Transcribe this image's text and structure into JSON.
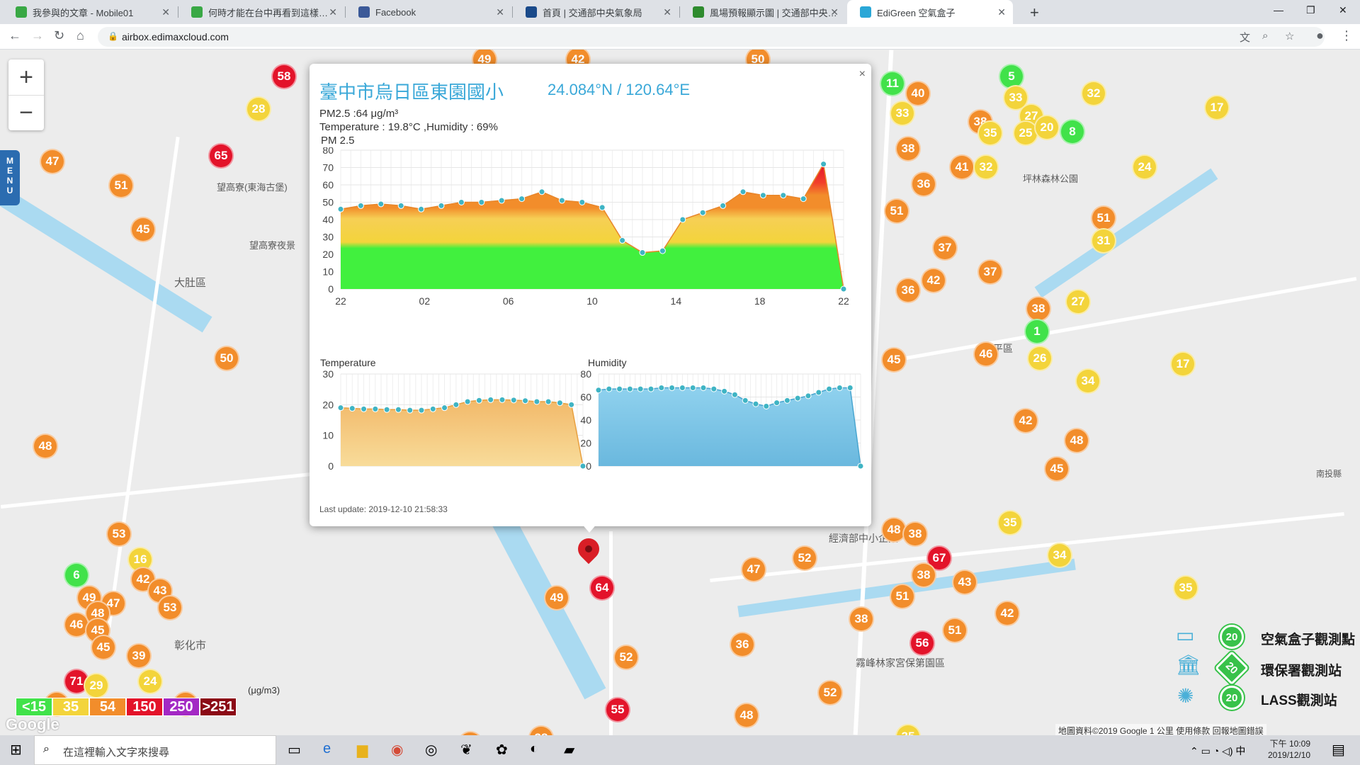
{
  "browser": {
    "tabs": [
      {
        "title": "我參與的文章 - Mobile01",
        "favicon_color": "#39a845",
        "active": false
      },
      {
        "title": "何時才能在台中再看到這樣的藍天",
        "favicon_color": "#39a845",
        "active": false
      },
      {
        "title": "Facebook",
        "favicon_color": "#3b5998",
        "active": false
      },
      {
        "title": "首頁 | 交通部中央氣象局",
        "favicon_color": "#1a4a8a",
        "active": false
      },
      {
        "title": "風場預報顯示圖 | 交通部中央氣象局",
        "favicon_color": "#2e8b2e",
        "active": false
      },
      {
        "title": "EdiGreen 空氣盒子",
        "favicon_color": "#2aa7d7",
        "active": true
      }
    ],
    "url": "airbox.edimaxcloud.com"
  },
  "map": {
    "labels": [
      "大肚區",
      "望高寮(東海古堡)",
      "望高寮夜景",
      "彰化市",
      "坪林森林公園",
      "霧峰林家宮保第園區",
      "經濟部中小企業",
      "太平區",
      "南投縣"
    ],
    "zoom_in": "+",
    "zoom_out": "−",
    "menu": "MENU",
    "pm_legend": [
      {
        "label": "<15",
        "color": "#41e24a"
      },
      {
        "label": "35",
        "color": "#f3d43b"
      },
      {
        "label": "54",
        "color": "#f28d2b"
      },
      {
        "label": "150",
        "color": "#e3132a"
      },
      {
        "label": "250",
        "color": "#a329c4"
      },
      {
        "label": ">251",
        "color": "#8b0a16"
      }
    ],
    "unit": "(μg/m3)",
    "google": "Google",
    "attribution": "地圖資料©2019 Google   1 公里   使用條款   回報地圖錯誤",
    "station_legend": [
      {
        "label": "空氣盒子觀測點",
        "value": "20",
        "icon": "airbox-icon"
      },
      {
        "label": "環保署觀測站",
        "value": "20",
        "icon": "government-building-icon"
      },
      {
        "label": "LASS觀測站",
        "value": "20",
        "icon": "antenna-icon"
      }
    ],
    "markers": [
      {
        "v": "58",
        "x": 383,
        "y": 20,
        "c": "#e3132a"
      },
      {
        "v": "28",
        "x": 347,
        "y": 66,
        "c": "#f3d43b"
      },
      {
        "v": "65",
        "x": 294,
        "y": 132,
        "c": "#e3132a"
      },
      {
        "v": "47",
        "x": 56,
        "y": 140,
        "c": "#f28d2b"
      },
      {
        "v": "51",
        "x": 153,
        "y": 174,
        "c": "#f28d2b"
      },
      {
        "v": "45",
        "x": 184,
        "y": 236,
        "c": "#f28d2b"
      },
      {
        "v": "50",
        "x": 302,
        "y": 418,
        "c": "#f28d2b"
      },
      {
        "v": "48",
        "x": 46,
        "y": 542,
        "c": "#f28d2b"
      },
      {
        "v": "53",
        "x": 150,
        "y": 666,
        "c": "#f28d2b"
      },
      {
        "v": "16",
        "x": 180,
        "y": 702,
        "c": "#f3d43b"
      },
      {
        "v": "6",
        "x": 90,
        "y": 724,
        "c": "#41e24a"
      },
      {
        "v": "42",
        "x": 184,
        "y": 730,
        "c": "#f28d2b"
      },
      {
        "v": "43",
        "x": 208,
        "y": 746,
        "c": "#f28d2b"
      },
      {
        "v": "49",
        "x": 108,
        "y": 756,
        "c": "#f28d2b"
      },
      {
        "v": "47",
        "x": 142,
        "y": 764,
        "c": "#f28d2b"
      },
      {
        "v": "53",
        "x": 222,
        "y": 770,
        "c": "#f28d2b"
      },
      {
        "v": "48",
        "x": 120,
        "y": 778,
        "c": "#f28d2b"
      },
      {
        "v": "46",
        "x": 90,
        "y": 794,
        "c": "#f28d2b"
      },
      {
        "v": "45",
        "x": 120,
        "y": 802,
        "c": "#f28d2b"
      },
      {
        "v": "45",
        "x": 128,
        "y": 826,
        "c": "#f28d2b"
      },
      {
        "v": "39",
        "x": 178,
        "y": 838,
        "c": "#f28d2b"
      },
      {
        "v": "71",
        "x": 90,
        "y": 874,
        "c": "#e3132a"
      },
      {
        "v": "29",
        "x": 118,
        "y": 880,
        "c": "#f3d43b"
      },
      {
        "v": "24",
        "x": 194,
        "y": 874,
        "c": "#f3d43b"
      },
      {
        "v": "51",
        "x": 244,
        "y": 906,
        "c": "#f28d2b"
      },
      {
        "v": "46",
        "x": 62,
        "y": 906,
        "c": "#f28d2b"
      },
      {
        "v": "49",
        "x": 666,
        "y": -4,
        "c": "#f28d2b"
      },
      {
        "v": "42",
        "x": 798,
        "y": -4,
        "c": "#f28d2b"
      },
      {
        "v": "50",
        "x": 1052,
        "y": -4,
        "c": "#f28d2b"
      },
      {
        "v": "11",
        "x": 1242,
        "y": 30,
        "c": "#41e24a"
      },
      {
        "v": "40",
        "x": 1278,
        "y": 44,
        "c": "#f28d2b"
      },
      {
        "v": "33",
        "x": 1256,
        "y": 72,
        "c": "#f3d43b"
      },
      {
        "v": "38",
        "x": 1264,
        "y": 122,
        "c": "#f28d2b"
      },
      {
        "v": "36",
        "x": 1286,
        "y": 172,
        "c": "#f28d2b"
      },
      {
        "v": "51",
        "x": 1248,
        "y": 210,
        "c": "#f28d2b"
      },
      {
        "v": "41",
        "x": 1340,
        "y": 148,
        "c": "#f28d2b"
      },
      {
        "v": "32",
        "x": 1374,
        "y": 148,
        "c": "#f3d43b"
      },
      {
        "v": "5",
        "x": 1410,
        "y": 20,
        "c": "#41e24a"
      },
      {
        "v": "33",
        "x": 1416,
        "y": 50,
        "c": "#f3d43b"
      },
      {
        "v": "38",
        "x": 1366,
        "y": 84,
        "c": "#f28d2b"
      },
      {
        "v": "35",
        "x": 1380,
        "y": 100,
        "c": "#f3d43b"
      },
      {
        "v": "27",
        "x": 1438,
        "y": 76,
        "c": "#f3d43b"
      },
      {
        "v": "25",
        "x": 1430,
        "y": 100,
        "c": "#f3d43b"
      },
      {
        "v": "20",
        "x": 1460,
        "y": 92,
        "c": "#f3d43b"
      },
      {
        "v": "8",
        "x": 1496,
        "y": 98,
        "c": "#41e24a"
      },
      {
        "v": "32",
        "x": 1526,
        "y": 44,
        "c": "#f3d43b"
      },
      {
        "v": "17",
        "x": 1700,
        "y": 64,
        "c": "#f3d43b"
      },
      {
        "v": "24",
        "x": 1598,
        "y": 148,
        "c": "#f3d43b"
      },
      {
        "v": "51",
        "x": 1540,
        "y": 220,
        "c": "#f28d2b"
      },
      {
        "v": "31",
        "x": 1540,
        "y": 252,
        "c": "#f3d43b"
      },
      {
        "v": "37",
        "x": 1316,
        "y": 262,
        "c": "#f28d2b"
      },
      {
        "v": "37",
        "x": 1380,
        "y": 296,
        "c": "#f28d2b"
      },
      {
        "v": "42",
        "x": 1300,
        "y": 308,
        "c": "#f28d2b"
      },
      {
        "v": "36",
        "x": 1264,
        "y": 322,
        "c": "#f28d2b"
      },
      {
        "v": "27",
        "x": 1504,
        "y": 338,
        "c": "#f3d43b"
      },
      {
        "v": "38",
        "x": 1448,
        "y": 348,
        "c": "#f28d2b"
      },
      {
        "v": "1",
        "x": 1446,
        "y": 380,
        "c": "#41e24a"
      },
      {
        "v": "46",
        "x": 1374,
        "y": 412,
        "c": "#f28d2b"
      },
      {
        "v": "26",
        "x": 1450,
        "y": 418,
        "c": "#f3d43b"
      },
      {
        "v": "17",
        "x": 1652,
        "y": 426,
        "c": "#f3d43b"
      },
      {
        "v": "34",
        "x": 1518,
        "y": 450,
        "c": "#f3d43b"
      },
      {
        "v": "45",
        "x": 1244,
        "y": 420,
        "c": "#f28d2b"
      },
      {
        "v": "42",
        "x": 1430,
        "y": 506,
        "c": "#f28d2b"
      },
      {
        "v": "48",
        "x": 1502,
        "y": 534,
        "c": "#f28d2b"
      },
      {
        "v": "45",
        "x": 1474,
        "y": 574,
        "c": "#f28d2b"
      },
      {
        "v": "35",
        "x": 1408,
        "y": 650,
        "c": "#f3d43b"
      },
      {
        "v": "34",
        "x": 1478,
        "y": 696,
        "c": "#f3d43b"
      },
      {
        "v": "35",
        "x": 1656,
        "y": 742,
        "c": "#f3d43b"
      },
      {
        "v": "48",
        "x": 1244,
        "y": 660,
        "c": "#f28d2b"
      },
      {
        "v": "38",
        "x": 1274,
        "y": 666,
        "c": "#f28d2b"
      },
      {
        "v": "67",
        "x": 1308,
        "y": 700,
        "c": "#e3132a"
      },
      {
        "v": "38",
        "x": 1286,
        "y": 724,
        "c": "#f28d2b"
      },
      {
        "v": "43",
        "x": 1344,
        "y": 734,
        "c": "#f28d2b"
      },
      {
        "v": "42",
        "x": 1404,
        "y": 778,
        "c": "#f28d2b"
      },
      {
        "v": "51",
        "x": 1256,
        "y": 754,
        "c": "#f28d2b"
      },
      {
        "v": "51",
        "x": 1330,
        "y": 802,
        "c": "#f28d2b"
      },
      {
        "v": "56",
        "x": 1284,
        "y": 820,
        "c": "#e3132a"
      },
      {
        "v": "38",
        "x": 1198,
        "y": 786,
        "c": "#f28d2b"
      },
      {
        "v": "47",
        "x": 1046,
        "y": 716,
        "c": "#f28d2b"
      },
      {
        "v": "52",
        "x": 1118,
        "y": 700,
        "c": "#f28d2b"
      },
      {
        "v": "36",
        "x": 1030,
        "y": 822,
        "c": "#f28d2b"
      },
      {
        "v": "52",
        "x": 1154,
        "y": 890,
        "c": "#f28d2b"
      },
      {
        "v": "48",
        "x": 1036,
        "y": 922,
        "c": "#f28d2b"
      },
      {
        "v": "35",
        "x": 1264,
        "y": 952,
        "c": "#f3d43b"
      },
      {
        "v": "49",
        "x": 768,
        "y": 756,
        "c": "#f28d2b"
      },
      {
        "v": "64",
        "x": 832,
        "y": 742,
        "c": "#e3132a"
      },
      {
        "v": "52",
        "x": 866,
        "y": 840,
        "c": "#f28d2b"
      },
      {
        "v": "55",
        "x": 854,
        "y": 914,
        "c": "#e3132a"
      },
      {
        "v": "38",
        "x": 746,
        "y": 954,
        "c": "#f28d2b"
      },
      {
        "v": "38",
        "x": 646,
        "y": 962,
        "c": "#f28d2b"
      }
    ]
  },
  "popup": {
    "title": "臺中市烏日區東園國小",
    "coords": "24.084°N / 120.64°E",
    "pm_line": "PM2.5 :64 μg/m³",
    "env_line": "Temperature : 19.8°C ,Humidity : 69%",
    "chart_title": "PM 2.5",
    "temp_title": "Temperature",
    "hum_title": "Humidity",
    "last_update": "Last update: 2019-12-10 21:58:33",
    "close": "×"
  },
  "taskbar": {
    "search_placeholder": "在這裡輸入文字來搜尋",
    "time": "下午 10:09",
    "date": "2019/12/10"
  },
  "chart_data": [
    {
      "type": "area",
      "title": "PM 2.5",
      "x_ticks": [
        "22",
        "02",
        "06",
        "10",
        "14",
        "18",
        "22"
      ],
      "ylim": [
        0,
        80
      ],
      "y_ticks": [
        0,
        10,
        20,
        30,
        40,
        50,
        60,
        70,
        80
      ],
      "values": [
        46,
        48,
        49,
        48,
        46,
        48,
        50,
        50,
        51,
        52,
        56,
        51,
        50,
        47,
        28,
        21,
        22,
        40,
        44,
        48,
        56,
        54,
        54,
        52,
        72,
        0
      ]
    },
    {
      "type": "area",
      "title": "Temperature",
      "ylim": [
        0,
        30
      ],
      "y_ticks": [
        0,
        10,
        20,
        30
      ],
      "values": [
        19,
        18.8,
        18.6,
        18.6,
        18.4,
        18.4,
        18.2,
        18.2,
        18.6,
        19,
        20,
        21,
        21.4,
        21.6,
        21.6,
        21.5,
        21.3,
        21,
        21,
        20.6,
        20,
        0
      ]
    },
    {
      "type": "area",
      "title": "Humidity",
      "ylim": [
        0,
        80
      ],
      "y_ticks": [
        0,
        20,
        40,
        60,
        80
      ],
      "values": [
        66,
        67,
        67,
        67,
        67,
        67,
        68,
        68,
        68,
        68,
        68,
        67,
        65,
        62,
        57,
        54,
        52,
        55,
        57,
        59,
        61,
        64,
        67,
        68,
        68,
        0
      ]
    }
  ]
}
